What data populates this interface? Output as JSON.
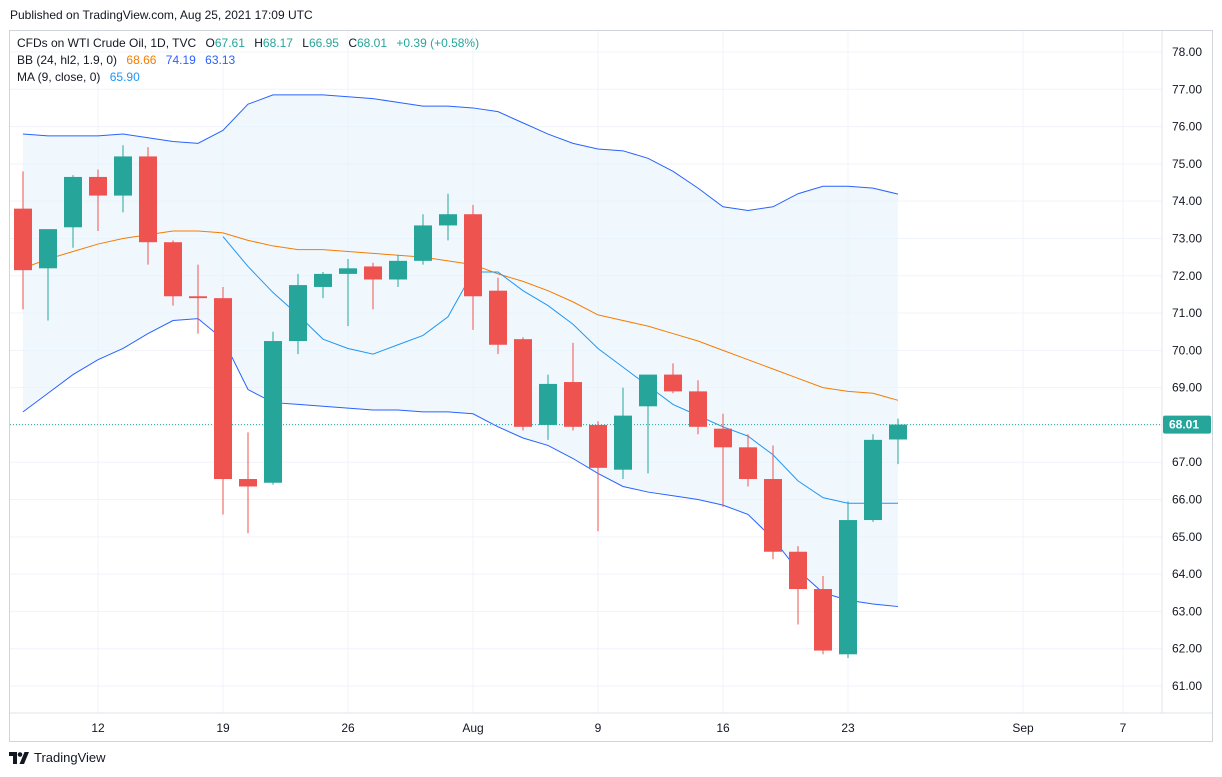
{
  "header": {
    "published_text": "Published on TradingView.com, Aug 25, 2021 17:09 UTC"
  },
  "legend": {
    "main": {
      "title": "CFDs on WTI Crude Oil, 1D, TVC",
      "o_label": "O",
      "o_value": "67.61",
      "h_label": "H",
      "h_value": "68.17",
      "l_label": "L",
      "l_value": "66.95",
      "c_label": "C",
      "c_value": "68.01",
      "change": "+0.39 (+0.58%)"
    },
    "bb": {
      "title": "BB (24, hl2, 1.9, 0)",
      "basis": "68.66",
      "upper": "74.19",
      "lower": "63.13"
    },
    "ma": {
      "title": "MA (9, close, 0)",
      "value": "65.90"
    }
  },
  "footer": {
    "brand": "TradingView"
  },
  "colors": {
    "up": "#26a69a",
    "down": "#ef5350",
    "bb_basis": "#f57c00",
    "bb_band": "#2962ff",
    "ma": "#2196f3",
    "bb_fill": "#e3f2fd",
    "last_price_bg": "#26a69a"
  },
  "chart_data": {
    "type": "candlestick",
    "title": "CFDs on WTI Crude Oil, 1D, TVC",
    "y_range": [
      60.5,
      78.3
    ],
    "y_ticks": [
      "61.00",
      "62.00",
      "63.00",
      "64.00",
      "65.00",
      "66.00",
      "67.00",
      "68.00",
      "69.00",
      "70.00",
      "71.00",
      "72.00",
      "73.00",
      "74.00",
      "75.00",
      "76.00",
      "77.00",
      "78.00"
    ],
    "x_ticks": [
      {
        "label": "12",
        "date": "2021-07-12"
      },
      {
        "label": "19",
        "date": "2021-07-19"
      },
      {
        "label": "26",
        "date": "2021-07-26"
      },
      {
        "label": "Aug",
        "date": "2021-08-02"
      },
      {
        "label": "9",
        "date": "2021-08-09"
      },
      {
        "label": "16",
        "date": "2021-08-16"
      },
      {
        "label": "23",
        "date": "2021-08-23"
      },
      {
        "label": "Sep",
        "date": "2021-09-01"
      },
      {
        "label": "7",
        "date": "2021-09-07"
      }
    ],
    "last_price": "68.01",
    "candles": [
      {
        "date": "2021-07-07",
        "o": 73.8,
        "h": 74.8,
        "l": 71.1,
        "c": 72.15
      },
      {
        "date": "2021-07-08",
        "o": 72.2,
        "h": 73.25,
        "l": 70.8,
        "c": 73.25
      },
      {
        "date": "2021-07-09",
        "o": 73.3,
        "h": 74.7,
        "l": 72.75,
        "c": 74.65
      },
      {
        "date": "2021-07-12",
        "o": 74.65,
        "h": 74.85,
        "l": 73.2,
        "c": 74.15
      },
      {
        "date": "2021-07-13",
        "o": 74.15,
        "h": 75.5,
        "l": 73.7,
        "c": 75.2
      },
      {
        "date": "2021-07-14",
        "o": 75.2,
        "h": 75.45,
        "l": 72.3,
        "c": 72.9
      },
      {
        "date": "2021-07-15",
        "o": 72.9,
        "h": 72.95,
        "l": 71.2,
        "c": 71.45
      },
      {
        "date": "2021-07-16",
        "o": 71.45,
        "h": 72.3,
        "l": 70.45,
        "c": 71.4
      },
      {
        "date": "2021-07-19",
        "o": 71.4,
        "h": 71.7,
        "l": 65.6,
        "c": 66.55
      },
      {
        "date": "2021-07-20",
        "o": 66.55,
        "h": 67.8,
        "l": 65.1,
        "c": 66.35
      },
      {
        "date": "2021-07-21",
        "o": 66.45,
        "h": 70.5,
        "l": 66.4,
        "c": 70.25
      },
      {
        "date": "2021-07-22",
        "o": 70.25,
        "h": 72.05,
        "l": 69.9,
        "c": 71.75
      },
      {
        "date": "2021-07-23",
        "o": 71.7,
        "h": 72.1,
        "l": 71.4,
        "c": 72.05
      },
      {
        "date": "2021-07-26",
        "o": 72.05,
        "h": 72.45,
        "l": 70.65,
        "c": 72.2
      },
      {
        "date": "2021-07-27",
        "o": 72.25,
        "h": 72.35,
        "l": 71.1,
        "c": 71.9
      },
      {
        "date": "2021-07-28",
        "o": 71.9,
        "h": 72.55,
        "l": 71.7,
        "c": 72.4
      },
      {
        "date": "2021-07-29",
        "o": 72.4,
        "h": 73.65,
        "l": 72.3,
        "c": 73.35
      },
      {
        "date": "2021-07-30",
        "o": 73.35,
        "h": 74.2,
        "l": 72.95,
        "c": 73.65
      },
      {
        "date": "2021-08-02",
        "o": 73.65,
        "h": 73.9,
        "l": 70.55,
        "c": 71.45
      },
      {
        "date": "2021-08-03",
        "o": 71.6,
        "h": 71.95,
        "l": 69.9,
        "c": 70.15
      },
      {
        "date": "2021-08-04",
        "o": 70.3,
        "h": 70.35,
        "l": 67.85,
        "c": 67.95
      },
      {
        "date": "2021-08-05",
        "o": 68.0,
        "h": 69.35,
        "l": 67.6,
        "c": 69.1
      },
      {
        "date": "2021-08-06",
        "o": 69.15,
        "h": 70.2,
        "l": 67.85,
        "c": 67.95
      },
      {
        "date": "2021-08-09",
        "o": 68.0,
        "h": 68.1,
        "l": 65.15,
        "c": 66.85
      },
      {
        "date": "2021-08-10",
        "o": 66.8,
        "h": 69.0,
        "l": 66.55,
        "c": 68.25
      },
      {
        "date": "2021-08-11",
        "o": 68.5,
        "h": 69.35,
        "l": 66.7,
        "c": 69.35
      },
      {
        "date": "2021-08-12",
        "o": 69.35,
        "h": 69.65,
        "l": 68.85,
        "c": 68.9
      },
      {
        "date": "2021-08-13",
        "o": 68.9,
        "h": 69.2,
        "l": 67.75,
        "c": 67.95
      },
      {
        "date": "2021-08-16",
        "o": 67.9,
        "h": 68.3,
        "l": 65.8,
        "c": 67.4
      },
      {
        "date": "2021-08-17",
        "o": 67.4,
        "h": 67.75,
        "l": 66.35,
        "c": 66.55
      },
      {
        "date": "2021-08-18",
        "o": 66.55,
        "h": 67.45,
        "l": 64.4,
        "c": 64.6
      },
      {
        "date": "2021-08-19",
        "o": 64.6,
        "h": 64.75,
        "l": 62.65,
        "c": 63.6
      },
      {
        "date": "2021-08-20",
        "o": 63.6,
        "h": 63.95,
        "l": 61.85,
        "c": 61.95
      },
      {
        "date": "2021-08-23",
        "o": 61.85,
        "h": 65.95,
        "l": 61.75,
        "c": 65.45
      },
      {
        "date": "2021-08-24",
        "o": 65.45,
        "h": 67.75,
        "l": 65.4,
        "c": 67.6
      },
      {
        "date": "2021-08-25",
        "o": 67.61,
        "h": 68.17,
        "l": 66.95,
        "c": 68.01
      }
    ],
    "bb_upper": [
      75.8,
      75.75,
      75.75,
      75.75,
      75.8,
      75.7,
      75.6,
      75.55,
      75.9,
      76.6,
      76.85,
      76.85,
      76.85,
      76.8,
      76.75,
      76.65,
      76.55,
      76.55,
      76.5,
      76.4,
      76.1,
      75.8,
      75.55,
      75.4,
      75.35,
      75.15,
      74.8,
      74.35,
      73.85,
      73.75,
      73.85,
      74.2,
      74.4,
      74.4,
      74.35,
      74.19
    ],
    "bb_basis": [
      72.2,
      72.45,
      72.65,
      72.85,
      73.0,
      73.1,
      73.2,
      73.2,
      73.15,
      72.95,
      72.8,
      72.7,
      72.7,
      72.65,
      72.6,
      72.55,
      72.5,
      72.4,
      72.3,
      72.05,
      71.85,
      71.6,
      71.3,
      70.95,
      70.8,
      70.65,
      70.45,
      70.25,
      70.0,
      69.75,
      69.5,
      69.25,
      69.0,
      68.9,
      68.85,
      68.66
    ],
    "bb_lower": [
      68.35,
      68.85,
      69.35,
      69.75,
      70.05,
      70.45,
      70.8,
      70.85,
      70.3,
      68.95,
      68.6,
      68.55,
      68.5,
      68.45,
      68.4,
      68.4,
      68.35,
      68.35,
      68.3,
      67.95,
      67.65,
      67.45,
      67.1,
      66.7,
      66.35,
      66.2,
      66.1,
      66.0,
      65.85,
      65.6,
      64.95,
      64.1,
      63.5,
      63.3,
      63.2,
      63.13
    ],
    "ma_9": [
      null,
      null,
      null,
      null,
      null,
      null,
      null,
      null,
      73.05,
      72.25,
      71.55,
      70.95,
      70.3,
      70.05,
      69.9,
      70.15,
      70.4,
      70.9,
      72.1,
      72.1,
      71.6,
      71.2,
      70.7,
      70.05,
      69.55,
      69.05,
      68.55,
      68.25,
      67.95,
      67.7,
      67.2,
      66.5,
      66.05,
      65.9,
      65.9,
      65.9
    ]
  }
}
